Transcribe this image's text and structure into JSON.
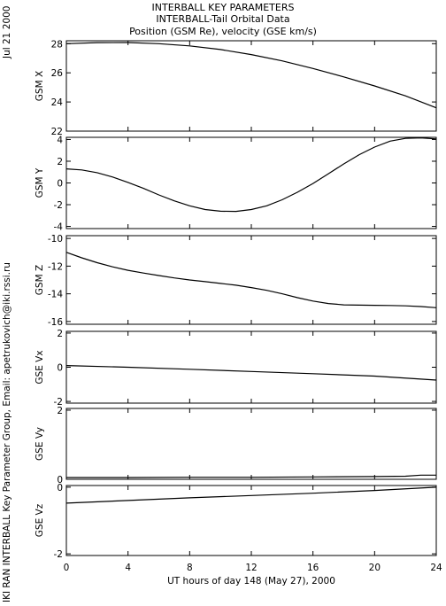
{
  "header": {
    "line1": "INTERBALL KEY PARAMETERS",
    "line2": "INTERBALL-Tail Orbital Data",
    "line3": "Position (GSM Re), velocity (GSE km/s)"
  },
  "side_labels": {
    "date": "Jul 21 2000",
    "credit": "IKI RAN INTERBALL Key Parameter Group, Email: apetrukovich@iki.rssi.ru"
  },
  "chart_data": {
    "type": "line",
    "xlabel": "UT hours of day 148 (May 27), 2000",
    "xlim": [
      0,
      24
    ],
    "xticks": [
      0,
      4,
      8,
      12,
      16,
      20,
      24
    ],
    "panels": [
      {
        "ylabel": "GSM X",
        "ylim": [
          22,
          28.2
        ],
        "yticks": [
          22,
          24,
          26,
          28
        ],
        "x": [
          0,
          2,
          4,
          6,
          8,
          10,
          12,
          14,
          16,
          18,
          20,
          22,
          24
        ],
        "y": [
          28.0,
          28.07,
          28.08,
          28.0,
          27.85,
          27.6,
          27.25,
          26.82,
          26.3,
          25.72,
          25.1,
          24.42,
          23.6
        ]
      },
      {
        "ylabel": "GSM Y",
        "ylim": [
          -4.2,
          4.2
        ],
        "yticks": [
          -4,
          -2,
          0,
          2,
          4
        ],
        "x": [
          0,
          1,
          2,
          3,
          4,
          5,
          6,
          7,
          8,
          9,
          10,
          11,
          12,
          13,
          14,
          15,
          16,
          17,
          18,
          19,
          20,
          21,
          22,
          23,
          24
        ],
        "y": [
          1.3,
          1.2,
          0.95,
          0.55,
          0.05,
          -0.5,
          -1.1,
          -1.65,
          -2.1,
          -2.45,
          -2.6,
          -2.62,
          -2.45,
          -2.1,
          -1.55,
          -0.85,
          -0.05,
          0.85,
          1.75,
          2.6,
          3.3,
          3.85,
          4.1,
          4.15,
          4.05
        ]
      },
      {
        "ylabel": "GSM Z",
        "ylim": [
          -16.2,
          -9.8
        ],
        "yticks": [
          -16,
          -14,
          -12,
          -10
        ],
        "x": [
          0,
          1,
          2,
          3,
          4,
          5,
          6,
          7,
          8,
          9,
          10,
          11,
          12,
          13,
          14,
          15,
          16,
          17,
          18,
          19,
          20,
          21,
          22,
          23,
          24
        ],
        "y": [
          -11.0,
          -11.4,
          -11.75,
          -12.05,
          -12.3,
          -12.5,
          -12.68,
          -12.85,
          -13.0,
          -13.12,
          -13.25,
          -13.38,
          -13.55,
          -13.75,
          -14.0,
          -14.28,
          -14.52,
          -14.7,
          -14.8,
          -14.82,
          -14.83,
          -14.84,
          -14.87,
          -14.92,
          -15.0
        ]
      },
      {
        "ylabel": "GSE Vx",
        "ylim": [
          -2.1,
          2.1
        ],
        "yticks": [
          -2,
          0,
          2
        ],
        "x": [
          0,
          4,
          8,
          12,
          16,
          20,
          24
        ],
        "y": [
          0.1,
          0.0,
          -0.12,
          -0.25,
          -0.38,
          -0.52,
          -0.75
        ]
      },
      {
        "ylabel": "GSE Vy",
        "ylim": [
          0,
          2.05
        ],
        "yticks": [
          0,
          2
        ],
        "x": [
          0,
          4,
          8,
          12,
          16,
          20,
          22,
          23,
          24
        ],
        "y": [
          0.05,
          0.05,
          0.06,
          0.06,
          0.07,
          0.08,
          0.09,
          0.12,
          0.12
        ]
      },
      {
        "ylabel": "GSE Vz",
        "ylim": [
          -2.05,
          0.05
        ],
        "yticks": [
          -2,
          0
        ],
        "x": [
          0,
          4,
          8,
          12,
          16,
          20,
          24
        ],
        "y": [
          -0.48,
          -0.4,
          -0.32,
          -0.25,
          -0.18,
          -0.1,
          0.0
        ]
      }
    ]
  }
}
